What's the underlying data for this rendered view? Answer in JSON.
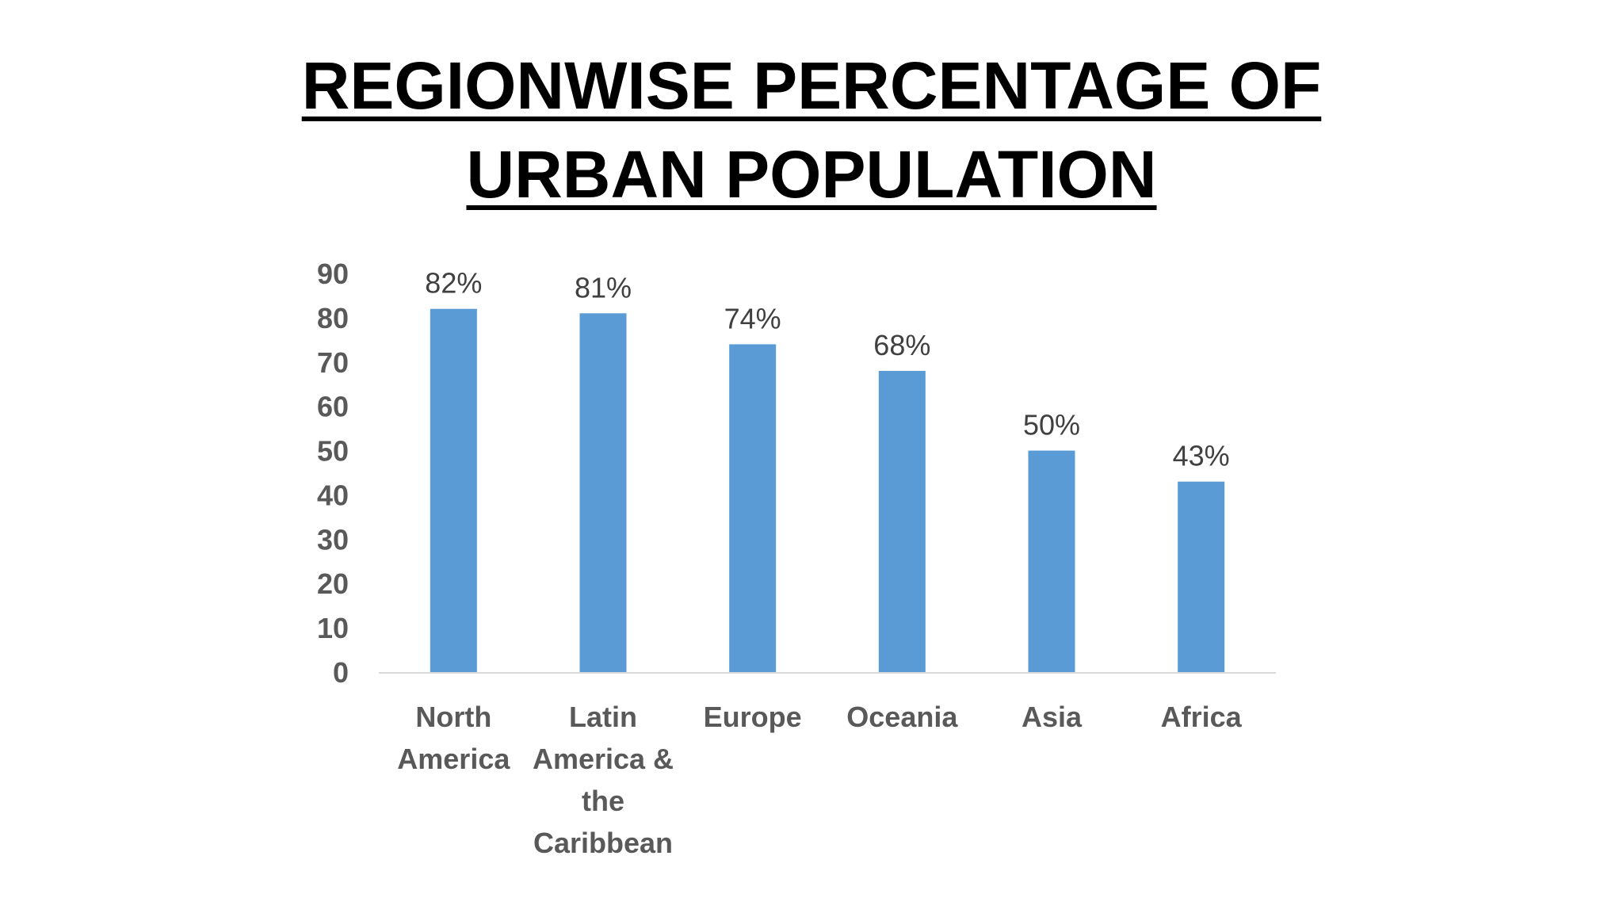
{
  "title": {
    "line1": "REGIONWISE PERCENTAGE OF",
    "line2": "URBAN POPULATION"
  },
  "chart_data": {
    "type": "bar",
    "title": "REGIONWISE PERCENTAGE OF URBAN POPULATION",
    "categories": [
      "North America",
      "Latin America & the Caribbean",
      "Europe",
      "Oceania",
      "Asia",
      "Africa"
    ],
    "category_lines": [
      [
        "North",
        "America"
      ],
      [
        "Latin",
        "America &",
        "the",
        "Caribbean"
      ],
      [
        "Europe"
      ],
      [
        "Oceania"
      ],
      [
        "Asia"
      ],
      [
        "Africa"
      ]
    ],
    "values": [
      82,
      81,
      74,
      68,
      50,
      43
    ],
    "data_labels": [
      "82%",
      "81%",
      "74%",
      "68%",
      "50%",
      "43%"
    ],
    "xlabel": "",
    "ylabel": "",
    "ylim": [
      0,
      90
    ],
    "yticks": [
      0,
      10,
      20,
      30,
      40,
      50,
      60,
      70,
      80,
      90
    ],
    "grid": false,
    "legend": "none",
    "bar_color": "#5B9BD5",
    "axis_color": "#D9D9D9"
  }
}
